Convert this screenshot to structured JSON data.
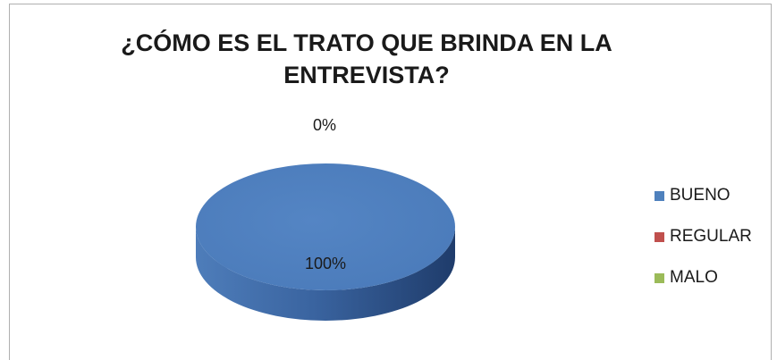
{
  "chart_data": {
    "type": "pie",
    "title": "¿CÓMO ES EL TRATO QUE BRINDA EN LA ENTREVISTA?",
    "categories": [
      "BUENO",
      "REGULAR",
      "MALO"
    ],
    "values": [
      100,
      0,
      0
    ],
    "data_labels": [
      "100%",
      "0%",
      "0%"
    ],
    "colors": [
      "#4f81bd",
      "#c0504d",
      "#9bbb59"
    ],
    "legend_position": "right",
    "style": "3d-pie"
  }
}
